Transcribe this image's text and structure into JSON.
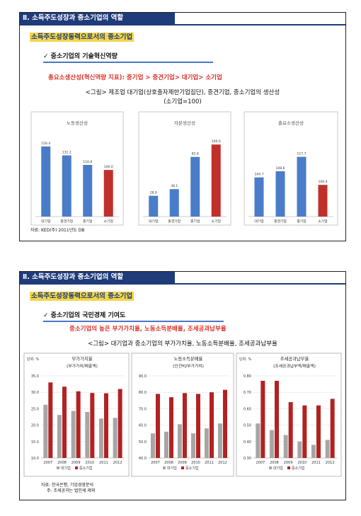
{
  "slide1": {
    "section_title": "Ⅱ. 소득주도성장과 중소기업의 역할",
    "subtitle": "소득주도성장동력으로서의 중소기업",
    "bullet": "✓ 중소기업의 기술혁신역량",
    "highlight": "총요소생산성(혁신역량 지표): 중기업 > 중견기업> 대기업> 소기업",
    "caption_line1": "<그림> 제조업 대기업(상호출자제한기업집단), 중견기업, 중소기업의 생산성",
    "caption_line2": "(소기업=100)",
    "source": "자료: KED(주) 2011년도 DB"
  },
  "slide2": {
    "section_title": "Ⅱ. 소득주도성장과 중소기업의 역할",
    "subtitle": "소득주도성장동력으로서의 중소기업",
    "bullet": "✓ 중소기업의 국민경제 기여도",
    "highlight": "중소기업의 높은 부가가치율, 노동소득분배율, 조세공과납부율",
    "caption": "<그림> 대기업과 중소기업의 부가가치율, 노동소득분배율, 조세공과납부율",
    "source_line1": "자료: 한국은행, 기업경영분석",
    "source_line2": "주: 조세공과는 법인세 제외"
  },
  "colors": {
    "blue": "#4a7cc9",
    "red": "#c0302b",
    "gray": "#a6a6a6",
    "darkred": "#b22222"
  },
  "chart_data": [
    {
      "type": "bar",
      "title": "노동생산성",
      "categories": [
        "대기업",
        "중견기업",
        "중기업",
        "소기업"
      ],
      "values": [
        150.4,
        131.2,
        110.8,
        100.0
      ],
      "ylim": [
        0,
        170
      ]
    },
    {
      "type": "bar",
      "title": "자본생산성",
      "categories": [
        "대기업",
        "중견기업",
        "중기업",
        "소기업"
      ],
      "values": [
        28.9,
        38.1,
        82.8,
        100.0
      ],
      "ylim": [
        0,
        110
      ]
    },
    {
      "type": "bar",
      "title": "총요소생산성",
      "categories": [
        "대기업",
        "중견기업",
        "중기업",
        "소기업"
      ],
      "values": [
        104.7,
        108.6,
        117.7,
        100.0
      ],
      "ylim": [
        80,
        130
      ]
    },
    {
      "type": "bar",
      "title": "부가가치율",
      "subtitle": "(부가가치/매출액)",
      "unit": "단위: %",
      "categories": [
        "2007",
        "2008",
        "2009",
        "2010",
        "2011",
        "2012"
      ],
      "ylim": [
        10,
        35
      ],
      "yticks": [
        "10.0",
        "15.0",
        "20.0",
        "25.0",
        "30.0",
        "35.0"
      ],
      "series": [
        {
          "name": "대기업",
          "values": [
            26.2,
            23.1,
            24.3,
            24.0,
            22.0,
            22.2
          ]
        },
        {
          "name": "중소기업",
          "values": [
            33.0,
            31.7,
            30.3,
            29.8,
            29.7,
            31.0
          ]
        }
      ]
    },
    {
      "type": "bar",
      "title": "노동소득분배율",
      "subtitle": "(인건비/부가가치)",
      "categories": [
        "2007",
        "2008",
        "2009",
        "2010",
        "2011",
        "2012"
      ],
      "ylim": [
        40,
        90
      ],
      "yticks": [
        "40.0",
        "50.0",
        "60.0",
        "70.0",
        "80.0",
        "90.0"
      ],
      "series": [
        {
          "name": "대기업",
          "values": [
            55.0,
            56.0,
            60.5,
            55.0,
            58.0,
            61.0
          ]
        },
        {
          "name": "중소기업",
          "values": [
            79.0,
            77.0,
            79.5,
            79.0,
            80.0,
            81.5
          ]
        }
      ]
    },
    {
      "type": "bar",
      "title": "조세공과납부율",
      "subtitle": "(조세공과납부액/매출액)",
      "unit": "단위: %",
      "categories": [
        "2007",
        "2008",
        "2009",
        "2010",
        "2011",
        "2012"
      ],
      "ylim": [
        0.3,
        0.8
      ],
      "yticks": [
        "0.30",
        "0.40",
        "0.50",
        "0.60",
        "0.70",
        "0.80"
      ],
      "series": [
        {
          "name": "대기업",
          "values": [
            0.51,
            0.47,
            0.44,
            0.4,
            0.38,
            0.41
          ]
        },
        {
          "name": "중소기업",
          "values": [
            0.77,
            0.77,
            0.64,
            0.62,
            0.62,
            0.66
          ]
        }
      ]
    }
  ]
}
